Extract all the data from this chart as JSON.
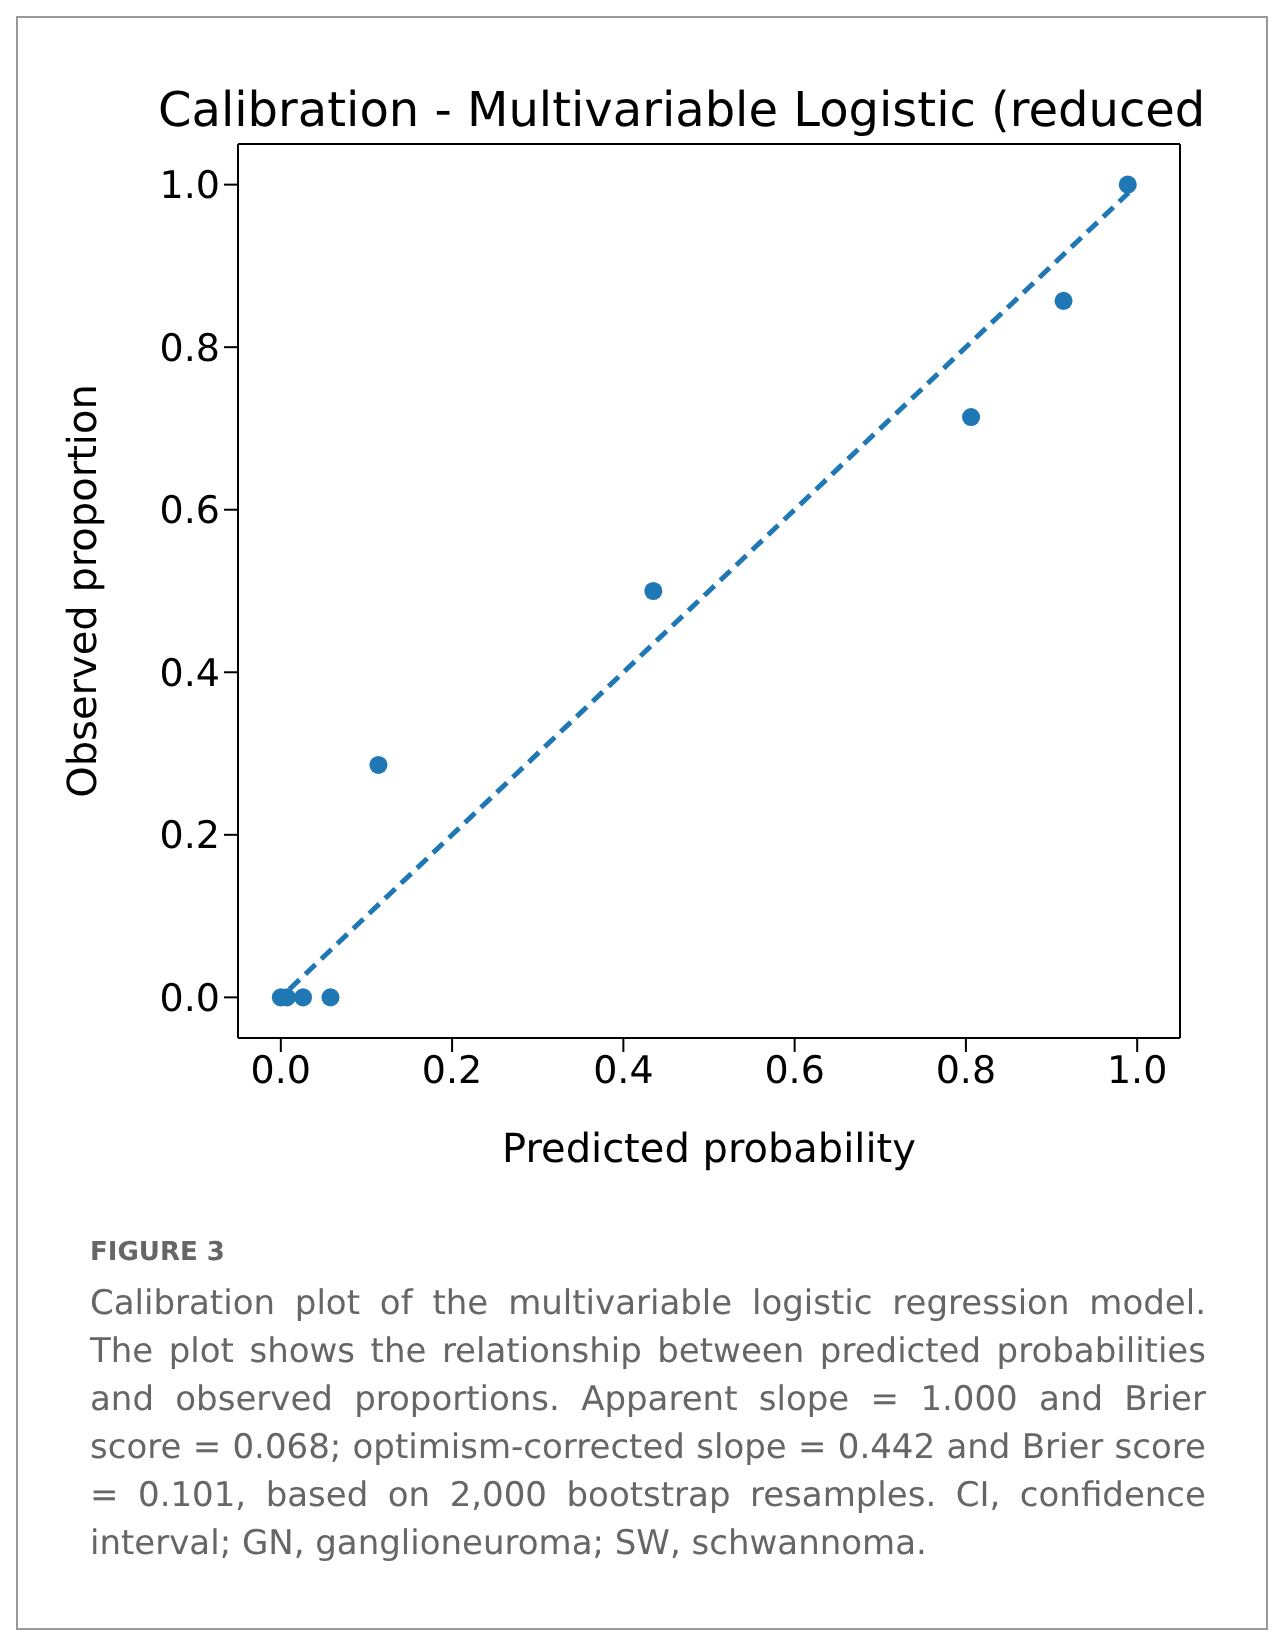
{
  "chart_data": {
    "type": "scatter",
    "title": "Calibration - Multivariable Logistic (reduced",
    "xlabel": "Predicted probability",
    "ylabel": "Observed proportion",
    "series": [
      {
        "type": "scatter",
        "color": "#1f77b4",
        "marker": "circle",
        "x": [
          0.0,
          0.007,
          0.026,
          0.058,
          0.114,
          0.435,
          0.806,
          0.914,
          0.989
        ],
        "values": [
          0.0,
          0.0,
          0.0,
          0.0,
          0.286,
          0.5,
          0.714,
          0.857,
          1.0
        ]
      },
      {
        "type": "line",
        "color": "#1f77b4",
        "line_style": "dashed",
        "marker": "none",
        "x": [
          0.01,
          0.99
        ],
        "values": [
          0.01,
          0.99
        ]
      }
    ],
    "xlim": [
      -0.05,
      1.05
    ],
    "ylim": [
      -0.05,
      1.05
    ],
    "xticks": [
      {
        "value": 0,
        "label": "0.0"
      },
      0.2,
      0.4,
      0.6,
      0.8,
      {
        "value": 1,
        "label": "1.0"
      }
    ],
    "yticks": [
      {
        "value": 0,
        "label": "0.0"
      },
      0.2,
      0.4,
      0.6,
      0.8,
      {
        "value": 1,
        "label": "1.0"
      }
    ],
    "annotations": [
      "FIGURE 3",
      "Calibration plot of the multivariable logistic regression model. The plot shows the relationship between predicted probabilities and observed proportions. Apparent slope = 1.000 and Brier score = 0.068; optimism-corrected slope = 0.442 and Brier score = 0.101, based on 2,000 bootstrap resamples. CI, confidence interval; GN, ganglioneuroma; SW, schwannoma."
    ]
  }
}
